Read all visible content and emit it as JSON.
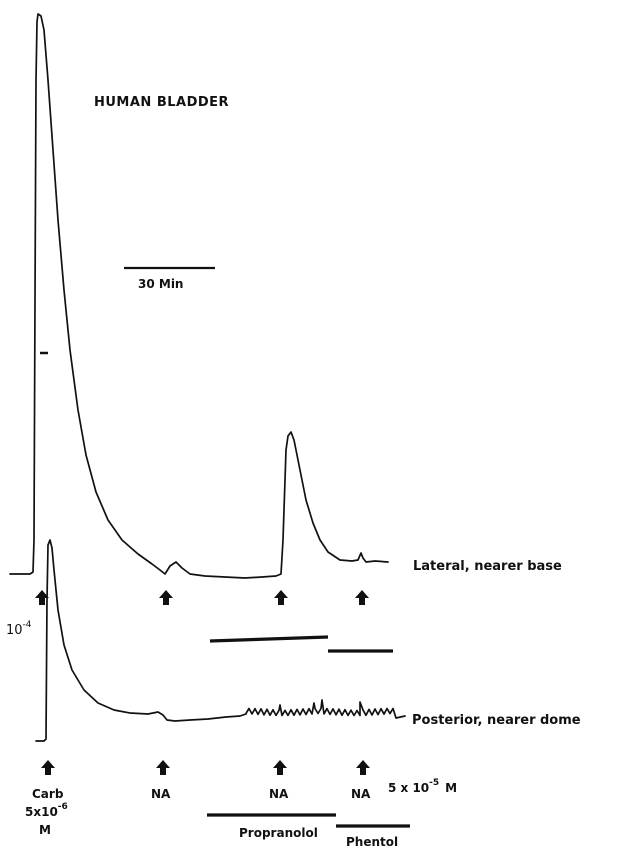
{
  "chart_data": {
    "type": "line",
    "title": "HUMAN BLADDER",
    "time_scale": "30 Min",
    "traces": [
      {
        "name": "Lateral, nearer base",
        "events": [
          "Carb",
          "NA",
          "NA",
          "NA"
        ]
      },
      {
        "name": "Posterior, nearer dome",
        "events": [
          "Carb",
          "NA",
          "NA",
          "NA"
        ]
      }
    ],
    "side_mark": "10",
    "side_mark_exp": "-4",
    "annotations": {
      "carb_label": "Carb",
      "carb_conc_base": "5x10",
      "carb_conc_exp": "-6",
      "carb_unit": "M",
      "na_label": "NA",
      "na_conc_base": "5 x 10",
      "na_conc_exp": "-5",
      "na_unit": "M"
    },
    "drug_bars": [
      {
        "label": "Propranolol"
      },
      {
        "label": "Phentol"
      }
    ]
  }
}
